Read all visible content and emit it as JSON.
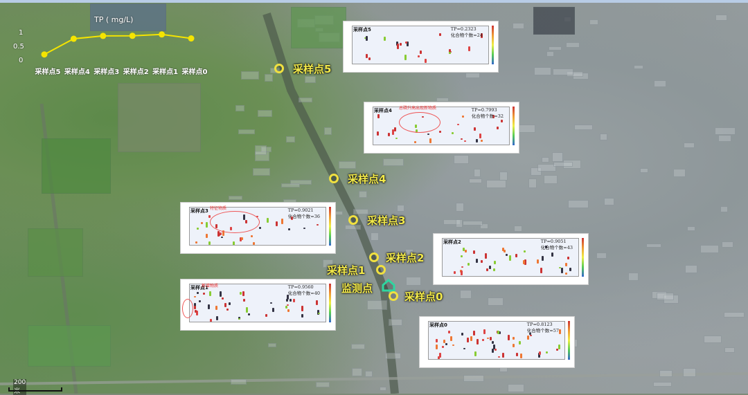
{
  "tp_chart": {
    "title": "TP ( mg/L)",
    "y_ticks": [
      "1",
      "0.5",
      "0"
    ],
    "ylim": [
      0,
      1
    ],
    "line_color": "#f5e400",
    "categories": [
      "采样点5",
      "采样点4",
      "采样点3",
      "采样点2",
      "采样点1",
      "采样点0"
    ],
    "values": [
      0.2323,
      0.7993,
      0.9021,
      0.9051,
      0.956,
      0.8123
    ]
  },
  "markers": [
    {
      "label": "采样点5"
    },
    {
      "label": "采样点4"
    },
    {
      "label": "采样点3"
    },
    {
      "label": "采样点2"
    },
    {
      "label": "采样点1"
    },
    {
      "label": "监测点",
      "icon": "home-icon"
    },
    {
      "label": "采样点0"
    }
  ],
  "panels": [
    {
      "name": "采样点5",
      "tp": "TP=0.2323",
      "count": "化合物个数=24"
    },
    {
      "name": "采样点4",
      "tp": "TP=0.7993",
      "count": "化合物个数=32",
      "annotation": "总磷升高出现新物质"
    },
    {
      "name": "采样点3",
      "tp": "TP=0.9021",
      "count": "化合物个数=36",
      "annotation": "特征物质"
    },
    {
      "name": "采样点2",
      "tp": "TP=0.9051",
      "count": "化合物个数=43"
    },
    {
      "name": "采样点1",
      "tp": "TP=0.9560",
      "count": "化合物个数=40",
      "annotation": "新增物质"
    },
    {
      "name": "采样点0",
      "tp": "TP=0.8123",
      "count": "化合物个数=57"
    }
  ],
  "scale": {
    "label": "200米"
  }
}
